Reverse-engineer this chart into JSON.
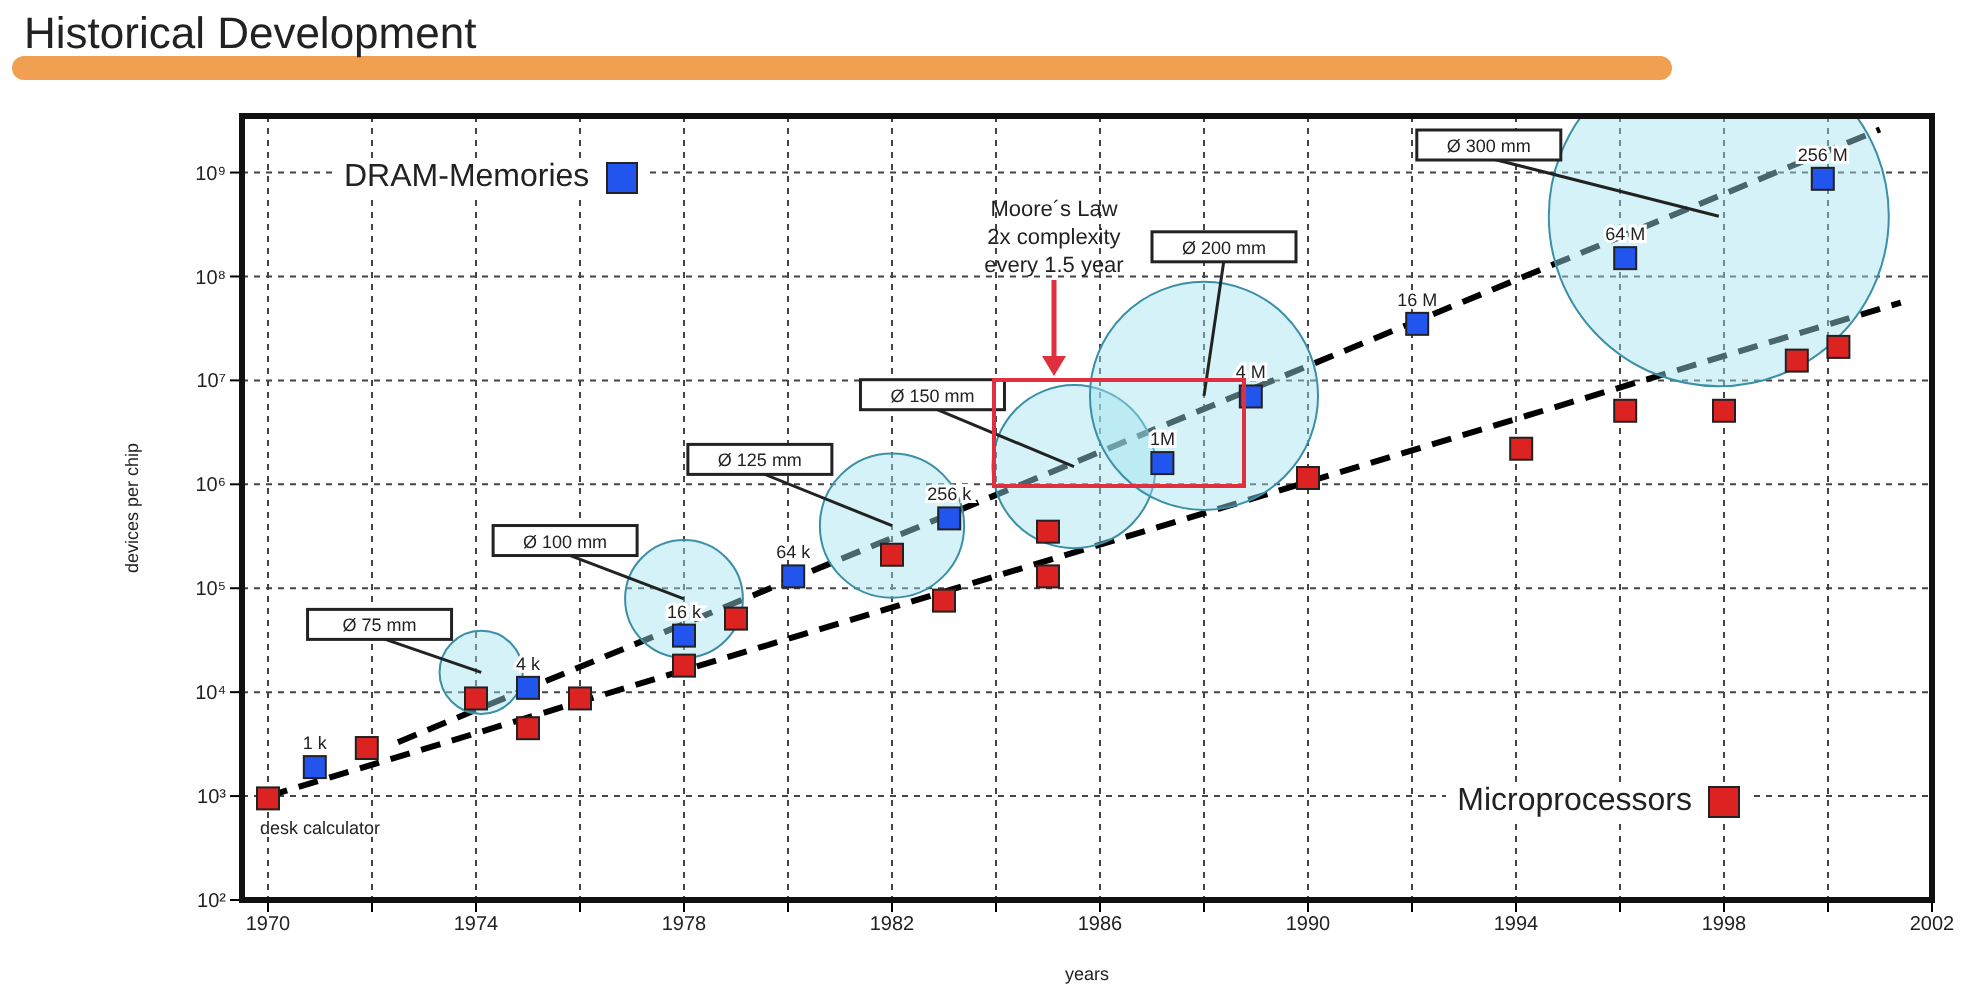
{
  "chart_data": {
    "type": "scatter",
    "title": "Historical Development",
    "xlabel": "years",
    "ylabel": "devices per chip",
    "xlim": [
      1969.5,
      2002
    ],
    "ylim": [
      100,
      3500000000
    ],
    "log": "y",
    "xticks": [
      1970,
      {
        "value": 1972,
        "label": null
      },
      1974,
      {
        "value": 1976,
        "label": null
      },
      1978,
      {
        "value": 1980,
        "label": null
      },
      1982,
      {
        "value": 1984,
        "label": null
      },
      1986,
      {
        "value": 1988,
        "label": null
      },
      1990,
      {
        "value": 1992,
        "label": null
      },
      1994,
      {
        "value": 1996,
        "label": null
      },
      1998,
      {
        "value": 2000,
        "label": null
      },
      2002
    ],
    "yticks": [
      {
        "value": 100,
        "label": "10²"
      },
      {
        "value": 1000,
        "label": "10³"
      },
      {
        "value": 10000,
        "label": "10⁴"
      },
      {
        "value": 100000,
        "label": "10⁵"
      },
      {
        "value": 1000000,
        "label": "10⁶"
      },
      {
        "value": 10000000,
        "label": "10⁷"
      },
      {
        "value": 100000000,
        "label": "10⁸"
      },
      {
        "value": 1000000000,
        "label": "10⁹"
      }
    ],
    "grid": true,
    "legend": "top left",
    "series": [
      {
        "type": "bubble",
        "color": "#9fe3f0",
        "x": [
          1974.1,
          1978,
          1982,
          1985.5,
          1988,
          1997.9
        ],
        "values": [
          15500,
          79000,
          400000,
          1480000,
          7100000,
          380000000
        ],
        "sizes": [
          0.06,
          0.12,
          0.18,
          0.23,
          0.45,
          1
        ]
      },
      {
        "type": "line",
        "color": "#000000",
        "line_style": "dashed",
        "x": [
          1972.5,
          2001
        ],
        "values": [
          3300,
          2600000000
        ]
      },
      {
        "type": "line",
        "color": "#000000",
        "line_style": "dashed",
        "x": [
          1970,
          2001.4
        ],
        "values": [
          1000,
          56000000
        ]
      },
      {
        "name": "DRAM-Memories",
        "color": "#2255ee",
        "marker": "square",
        "x": [
          1970.9,
          1975,
          1978,
          1980.1,
          1983.1,
          1987.2,
          1988.9,
          1992.1,
          1996.1,
          1999.9
        ],
        "values": [
          1900,
          11000,
          35000,
          130000,
          470000,
          1600000,
          7000000,
          35000000,
          150000000,
          870000000
        ]
      },
      {
        "name": "Microprocessors",
        "color": "#dd2222",
        "marker": "square",
        "x": [
          1970,
          1971.9,
          1974,
          1975,
          1976,
          1978,
          1979,
          1982,
          1983,
          1985,
          1985,
          1990,
          1994.1,
          1996.1,
          1998,
          1999.4,
          2000.2
        ],
        "values": [
          950,
          2900,
          8700,
          4500,
          8700,
          18000,
          51000,
          210000,
          76000,
          350000,
          130000,
          1150000,
          2200000,
          5100000,
          5100000,
          15500000,
          21000000
        ]
      }
    ],
    "annotations": [
      {
        "text": "Ø 75 mm",
        "x": 1974.1,
        "y": 15500
      },
      {
        "text": "Ø 100 mm",
        "x": 1978,
        "y": 79000
      },
      {
        "text": "Ø 125 mm",
        "x": 1982,
        "y": 400000
      },
      {
        "text": "Ø 150 mm",
        "x": 1985.5,
        "y": 1480000
      },
      {
        "text": "Ø 200 mm",
        "x": 1988,
        "y": 7100000
      },
      {
        "text": "Ø 300 mm",
        "x": 1997.9,
        "y": 380000000
      },
      {
        "text": "1 k",
        "x": 1970.9,
        "y": 1900
      },
      {
        "text": "4 k",
        "x": 1975,
        "y": 11000
      },
      {
        "text": "16 k",
        "x": 1978,
        "y": 35000
      },
      {
        "text": "64 k",
        "x": 1980.1,
        "y": 130000
      },
      {
        "text": "256 k",
        "x": 1983.1,
        "y": 470000
      },
      {
        "text": "1M",
        "x": 1987.2,
        "y": 1600000
      },
      {
        "text": "4 M",
        "x": 1988.9,
        "y": 7000000
      },
      {
        "text": "16 M",
        "x": 1992.1,
        "y": 35000000
      },
      {
        "text": "64 M",
        "x": 1996.1,
        "y": 150000000
      },
      {
        "text": "256 M",
        "x": 1999.9,
        "y": 870000000
      },
      {
        "text": "desk calculator",
        "x": 1970,
        "y": 950
      },
      "Moore´s Law\n2x complexity\nevery 1.5 year"
    ]
  }
}
